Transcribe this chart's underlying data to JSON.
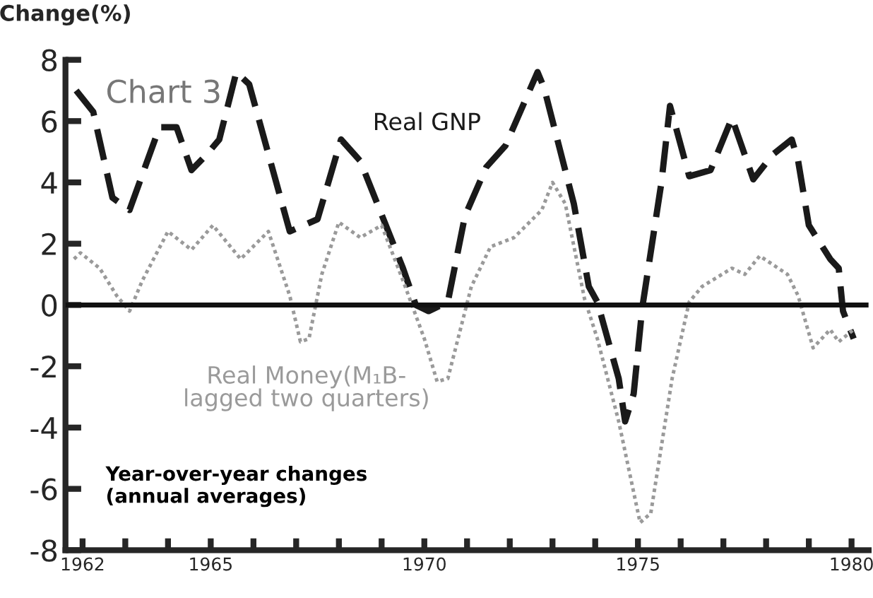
{
  "chart_data": {
    "type": "line",
    "ylabel": "Change(%)",
    "annotations": [
      "Chart 3",
      "Year-over-year changes\n(annual averages)"
    ],
    "xlim": [
      1961.6,
      1980.4
    ],
    "ylim": [
      -8,
      8
    ],
    "xticks": [
      1962,
      {
        "value": 1963,
        "label": null
      },
      {
        "value": 1964,
        "label": null
      },
      1965,
      {
        "value": 1966,
        "label": null
      },
      {
        "value": 1967,
        "label": null
      },
      {
        "value": 1968,
        "label": null
      },
      {
        "value": 1969,
        "label": null
      },
      1970,
      {
        "value": 1971,
        "label": null
      },
      {
        "value": 1972,
        "label": null
      },
      {
        "value": 1973,
        "label": null
      },
      {
        "value": 1974,
        "label": null
      },
      1975,
      {
        "value": 1976,
        "label": null
      },
      {
        "value": 1977,
        "label": null
      },
      {
        "value": 1978,
        "label": null
      },
      {
        "value": 1979,
        "label": null
      },
      1980
    ],
    "yticks": [
      -8,
      -6,
      -4,
      -2,
      0,
      2,
      4,
      6,
      8
    ],
    "grid": false,
    "legend": false,
    "marker": "none",
    "ref_lines": [
      {
        "axis": "y",
        "value": 0,
        "color": "#111111",
        "line_style": "solid"
      }
    ],
    "series": [
      {
        "name": "Real GNP",
        "color": "#1a1a1a",
        "line_style": "dashed",
        "x": [
          1961.85,
          1962.25,
          1962.7,
          1963.1,
          1963.8,
          1964.2,
          1964.55,
          1964.9,
          1965.2,
          1965.6,
          1965.9,
          1966.85,
          1967.5,
          1968.05,
          1968.5,
          1969.5,
          1969.8,
          1970.1,
          1970.55,
          1970.95,
          1971.45,
          1971.9,
          1972.65,
          1972.8,
          1973.5,
          1973.85,
          1974.05,
          1974.55,
          1974.7,
          1974.9,
          1975.1,
          1975.55,
          1975.75,
          1976.2,
          1976.7,
          1977.2,
          1977.7,
          1978.15,
          1978.6,
          1978.75,
          1979.0,
          1979.5,
          1979.7,
          1979.8,
          1980.05
        ],
        "values": [
          7.0,
          6.3,
          3.5,
          3.1,
          5.8,
          5.8,
          4.4,
          4.9,
          5.4,
          7.6,
          7.2,
          2.4,
          2.8,
          5.4,
          4.7,
          1.2,
          0.0,
          -0.2,
          0.1,
          2.9,
          4.5,
          5.2,
          7.6,
          7.1,
          3.3,
          0.6,
          0.1,
          -2.4,
          -3.8,
          -2.9,
          -0.1,
          4.0,
          6.5,
          4.2,
          4.4,
          6.1,
          4.1,
          4.9,
          5.4,
          4.7,
          2.6,
          1.5,
          1.2,
          -0.2,
          -1.1
        ]
      },
      {
        "name": "Real Money(M₁B-\nlagged two quarters)",
        "color": "#9a9a9a",
        "line_style": "dotted",
        "x": [
          1961.8,
          1961.95,
          1962.4,
          1962.8,
          1963.1,
          1963.4,
          1964.0,
          1964.55,
          1965.05,
          1965.7,
          1966.35,
          1966.85,
          1967.1,
          1967.3,
          1967.6,
          1968.0,
          1968.5,
          1969.0,
          1969.5,
          1970.0,
          1970.3,
          1970.55,
          1971.1,
          1971.55,
          1972.1,
          1972.75,
          1973.0,
          1973.3,
          1973.75,
          1974.05,
          1974.55,
          1975.05,
          1975.3,
          1975.8,
          1976.2,
          1976.5,
          1977.2,
          1977.5,
          1977.85,
          1978.5,
          1978.75,
          1979.1,
          1979.5,
          1979.7,
          1980.05
        ],
        "values": [
          1.5,
          1.7,
          1.2,
          0.3,
          -0.2,
          0.8,
          2.4,
          1.8,
          2.6,
          1.5,
          2.4,
          0.3,
          -1.2,
          -1.1,
          1.0,
          2.7,
          2.2,
          2.6,
          0.8,
          -1.1,
          -2.5,
          -2.4,
          0.6,
          1.9,
          2.2,
          3.1,
          4.0,
          3.3,
          0.2,
          -1.1,
          -3.8,
          -7.1,
          -6.8,
          -2.4,
          0.1,
          0.6,
          1.2,
          1.0,
          1.6,
          1.0,
          0.3,
          -1.4,
          -0.8,
          -1.2,
          -0.8
        ]
      }
    ]
  }
}
